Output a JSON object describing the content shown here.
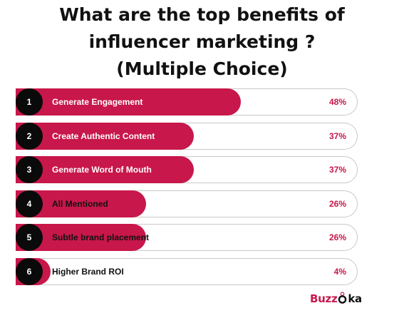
{
  "title_lines": [
    "What are the top benefits of",
    "influencer marketing ?",
    "(Multiple Choice)"
  ],
  "colors": {
    "bar_fill": "#c8174a",
    "badge": "#0a0a0a",
    "track_border": "#c8c8c8",
    "percent_text": "#c8174a"
  },
  "chart_data": {
    "type": "bar",
    "orientation": "horizontal",
    "ranks": [
      "1",
      "2",
      "3",
      "4",
      "5",
      "6"
    ],
    "categories": [
      "Generate Engagement",
      "Create Authentic Content",
      "Generate Word of Mouth",
      "All Mentioned",
      "Subtle brand placement",
      "Higher Brand ROI"
    ],
    "values": [
      48,
      37,
      37,
      26,
      26,
      4
    ],
    "value_labels": [
      "48%",
      "37%",
      "37%",
      "26%",
      "26%",
      "4%"
    ],
    "xlim": [
      0,
      100
    ],
    "grid": false,
    "legend": "none"
  },
  "logo": {
    "part1": "Buzz",
    "part2": "ka",
    "icon": "location-pin-o-icon"
  }
}
